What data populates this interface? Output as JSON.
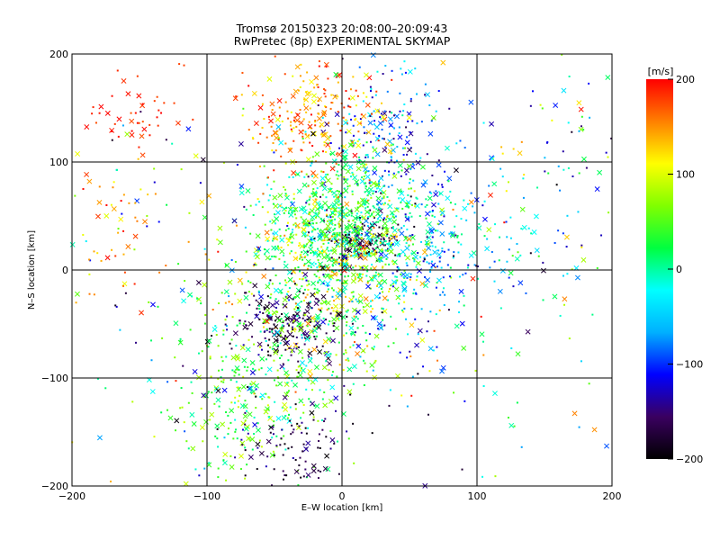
{
  "chart_data": {
    "type": "scatter",
    "title_line1": "Tromsø 20150323 20:08:00–20:09:43",
    "title_line2": "RwPretec (8p) EXPERIMENTAL SKYMAP",
    "xlabel": "E–W location [km]",
    "ylabel": "N–S location [km]",
    "xlim": [
      -200,
      200
    ],
    "ylim": [
      -200,
      200
    ],
    "x_ticks": [
      -200,
      -100,
      0,
      100,
      200
    ],
    "y_ticks": [
      -200,
      -100,
      0,
      100,
      200
    ],
    "x_tick_labels": [
      "−200",
      "−100",
      "0",
      "100",
      "200"
    ],
    "y_tick_labels": [
      "−200",
      "−100",
      "0",
      "100",
      "200"
    ],
    "grid": true,
    "marker_styles": [
      "x",
      "dot"
    ],
    "points_summary": "thousands of velocity points; densest near E-W 0..40 km, N-S 0..40 km",
    "colorbar": {
      "unit": "[m/s]",
      "range": [
        -200,
        200
      ],
      "ticks": [
        200,
        100,
        0,
        -100,
        -200
      ],
      "tick_labels": [
        "200",
        "100",
        "0",
        "−100",
        "−200"
      ],
      "colormap": [
        "#000000",
        "#3a0060",
        "#0000ff",
        "#00b0ff",
        "#00ffff",
        "#00ff40",
        "#80ff00",
        "#ffff00",
        "#ff8000",
        "#ff0000"
      ]
    },
    "clusters": [
      {
        "cx": -155,
        "cy": 140,
        "sx": 15,
        "sy": 15,
        "n": 45,
        "vmin": 170,
        "vmax": 200
      },
      {
        "cx": 30,
        "cy": 120,
        "sx": 20,
        "sy": 30,
        "n": 170,
        "vmin": -160,
        "vmax": -20
      },
      {
        "cx": 15,
        "cy": 30,
        "sx": 12,
        "sy": 10,
        "n": 130,
        "vmin": -200,
        "vmax": -150
      },
      {
        "cx": 5,
        "cy": 50,
        "sx": 30,
        "sy": 30,
        "n": 500,
        "vmin": -30,
        "vmax": 80
      },
      {
        "cx": -10,
        "cy": 0,
        "sx": 30,
        "sy": 40,
        "n": 550,
        "vmin": -20,
        "vmax": 160
      },
      {
        "cx": -40,
        "cy": -50,
        "sx": 22,
        "sy": 18,
        "n": 180,
        "vmin": -200,
        "vmax": -130
      },
      {
        "cx": -60,
        "cy": -110,
        "sx": 35,
        "sy": 45,
        "n": 350,
        "vmin": -20,
        "vmax": 100
      },
      {
        "cx": -35,
        "cy": -160,
        "sx": 20,
        "sy": 20,
        "n": 90,
        "vmin": -200,
        "vmax": -130
      },
      {
        "cx": -20,
        "cy": 140,
        "sx": 25,
        "sy": 25,
        "n": 220,
        "vmin": 100,
        "vmax": 200
      },
      {
        "cx": 60,
        "cy": 20,
        "sx": 40,
        "sy": 50,
        "n": 300,
        "vmin": -130,
        "vmax": 20
      },
      {
        "cx": 0,
        "cy": 0,
        "sx": 110,
        "sy": 110,
        "n": 450,
        "vmin": -200,
        "vmax": 200
      },
      {
        "cx": 170,
        "cy": 100,
        "sx": 25,
        "sy": 60,
        "n": 60,
        "vmin": -200,
        "vmax": 200
      },
      {
        "cx": -170,
        "cy": 30,
        "sx": 20,
        "sy": 40,
        "n": 45,
        "vmin": 100,
        "vmax": 200
      }
    ]
  }
}
